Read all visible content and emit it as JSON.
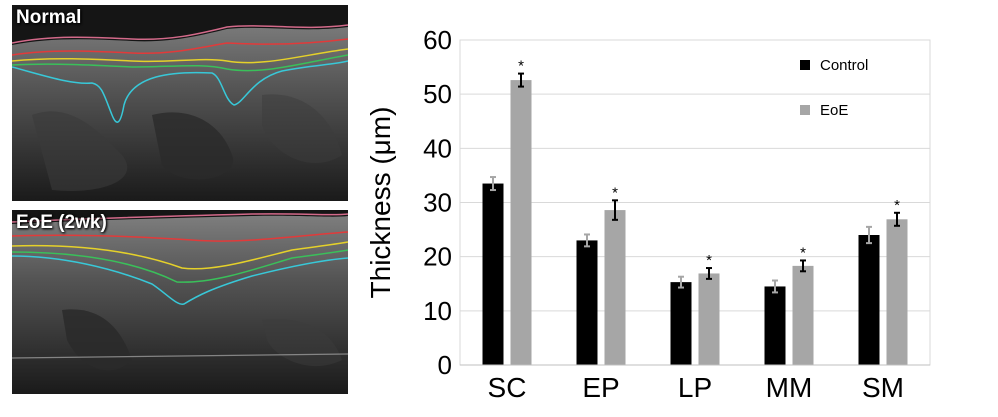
{
  "panels": [
    {
      "label": "Normal"
    },
    {
      "label": "EoE (2wk)"
    }
  ],
  "chart_data": {
    "type": "bar",
    "ylabel": "Thickness (μm)",
    "xlabel": "",
    "ylim": [
      0,
      60
    ],
    "yticks": [
      "0",
      "10",
      "20",
      "30",
      "40",
      "50",
      "60"
    ],
    "categories": [
      "SC",
      "EP",
      "LP",
      "MM",
      "SM"
    ],
    "series": [
      {
        "name": "Control",
        "color": "#000000",
        "values": [
          33.5,
          23.0,
          15.3,
          14.5,
          24.0
        ],
        "errors": [
          1.2,
          1.1,
          1.0,
          1.1,
          1.5
        ]
      },
      {
        "name": "EoE",
        "color": "#a6a6a6",
        "values": [
          52.6,
          28.6,
          16.9,
          18.3,
          26.9
        ],
        "errors": [
          1.2,
          1.8,
          1.0,
          1.0,
          1.2
        ]
      }
    ],
    "significance": [
      "*",
      "*",
      "*",
      "*",
      "*"
    ],
    "grid": true,
    "legend": "top-right"
  }
}
